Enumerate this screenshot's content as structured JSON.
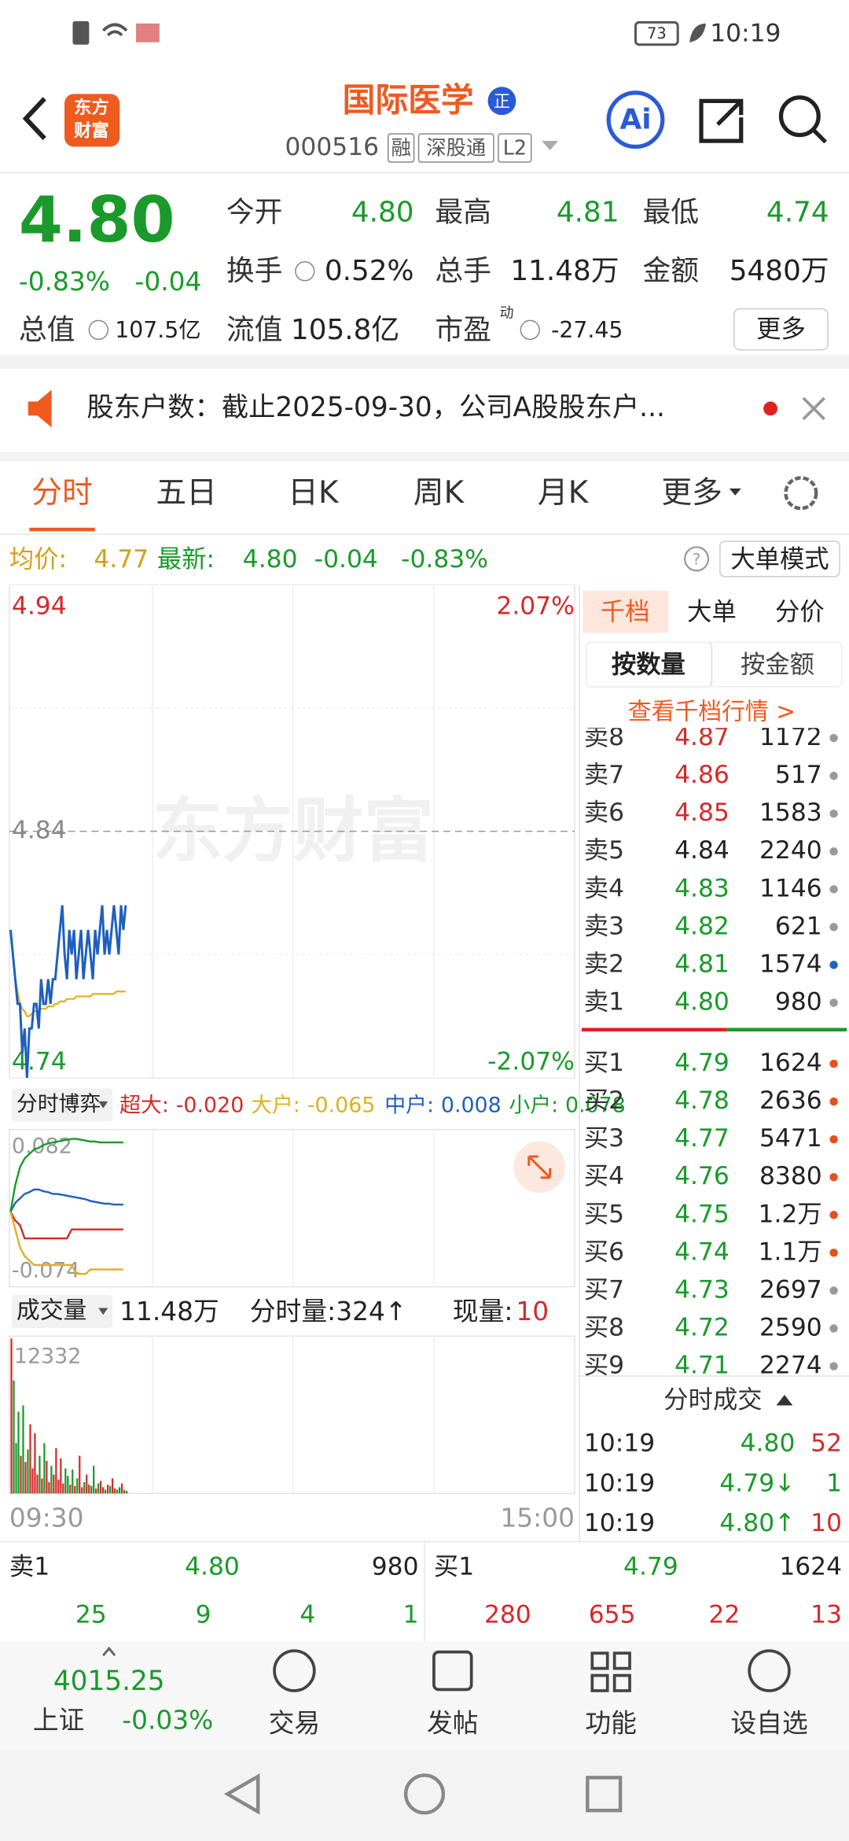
{
  "status": {
    "time": "10:19",
    "battery": "73"
  },
  "header": {
    "logo": [
      "东方",
      "财富"
    ],
    "title": "国际医学",
    "badge": "正",
    "code": "000516",
    "tags": [
      "融",
      "深股通",
      "L2"
    ],
    "ai": "Ai"
  },
  "quote": {
    "price": "4.80",
    "change_pct": "-0.83%",
    "change": "-0.04",
    "fields": [
      [
        "今开",
        "4.80"
      ],
      [
        "最高",
        "4.81"
      ],
      [
        "最低",
        "4.74"
      ],
      [
        "换手",
        "0.52%"
      ],
      [
        "总手",
        "11.48万"
      ],
      [
        "金额",
        "5480万"
      ]
    ],
    "total_value_label": "总值",
    "total_value": "107.5亿",
    "float_value_label": "流值",
    "float_value": "105.8亿",
    "pe_label": "市盈",
    "pe_sup": "动",
    "pe": "-27.45",
    "more": "更多"
  },
  "notice": "股东户数：截止2025-09-30，公司A股股东户...",
  "tabs": [
    "分时",
    "五日",
    "日K",
    "周K",
    "月K",
    "更多"
  ],
  "info_bar": {
    "avg_label": "均价:",
    "avg": "4.77",
    "latest_label": "最新:",
    "latest": "4.80",
    "change": "-0.04",
    "change_pct": "-0.83%",
    "mode": "大单模式"
  },
  "intraday": {
    "watermark": "东方财富",
    "price": {
      "type": "line",
      "ylim": [
        4.74,
        4.94
      ],
      "yticks": [
        4.94,
        4.84,
        4.74
      ],
      "pct_labels": [
        "2.07%",
        "-2.07%"
      ],
      "minutes": 240,
      "values": [
        4.8,
        4.79,
        4.78,
        4.77,
        4.77,
        4.75,
        4.76,
        4.74,
        4.76,
        4.76,
        4.77,
        4.77,
        4.76,
        4.78,
        4.77,
        4.77,
        4.78,
        4.77,
        4.78,
        4.78,
        4.79,
        4.8,
        4.81,
        4.79,
        4.78,
        4.8,
        4.79,
        4.8,
        4.78,
        4.79,
        4.8,
        4.78,
        4.79,
        4.8,
        4.79,
        4.78,
        4.8,
        4.79,
        4.8,
        4.81,
        4.79,
        4.8,
        4.79,
        4.8,
        4.81,
        4.8,
        4.79,
        4.81,
        4.8,
        4.81
      ],
      "avg": [
        4.8,
        4.79,
        4.78,
        4.775,
        4.77,
        4.768,
        4.767,
        4.765,
        4.765,
        4.766,
        4.767,
        4.767,
        4.767,
        4.768,
        4.768,
        4.768,
        4.769,
        4.769,
        4.769,
        4.77,
        4.77,
        4.771,
        4.771,
        4.771,
        4.772,
        4.772,
        4.772,
        4.772,
        4.773,
        4.773,
        4.773,
        4.773,
        4.773,
        4.773,
        4.773,
        4.774,
        4.774,
        4.774,
        4.774,
        4.774,
        4.774,
        4.774,
        4.774,
        4.774,
        4.774,
        4.775,
        4.775,
        4.775,
        4.775,
        4.775
      ],
      "color": "#1f5fbf",
      "avg_color": "#e0b020"
    },
    "flow": {
      "type": "line",
      "title": "分时博弈",
      "ylim": [
        -0.074,
        0.082
      ],
      "yticks": [
        0.082,
        -0.074
      ],
      "step": 2,
      "series": [
        {
          "name": "超大:",
          "label": "-0.020",
          "color": "#d42a2a",
          "values": [
            0,
            -0.01,
            -0.015,
            -0.03,
            -0.03,
            -0.03,
            -0.03,
            -0.03,
            -0.03,
            -0.03,
            -0.03,
            -0.03,
            -0.03,
            -0.02,
            -0.02,
            -0.02,
            -0.02,
            -0.02,
            -0.02,
            -0.02,
            -0.02,
            -0.02,
            -0.02,
            -0.02,
            -0.02
          ]
        },
        {
          "name": "大户:",
          "label": "-0.065",
          "color": "#e0b020",
          "values": [
            0,
            -0.02,
            -0.04,
            -0.05,
            -0.055,
            -0.06,
            -0.06,
            -0.06,
            -0.06,
            -0.06,
            -0.06,
            -0.06,
            -0.06,
            -0.06,
            -0.07,
            -0.07,
            -0.07,
            -0.065,
            -0.065,
            -0.065,
            -0.065,
            -0.065,
            -0.065,
            -0.065,
            -0.065
          ]
        },
        {
          "name": "中户:",
          "label": "0.008",
          "color": "#1f5fbf",
          "values": [
            0,
            0.01,
            0.015,
            0.02,
            0.022,
            0.025,
            0.025,
            0.023,
            0.022,
            0.02,
            0.02,
            0.019,
            0.018,
            0.017,
            0.016,
            0.015,
            0.014,
            0.012,
            0.011,
            0.01,
            0.009,
            0.009,
            0.008,
            0.008,
            0.008
          ]
        },
        {
          "name": "小户:",
          "label": "0.078",
          "color": "#1a9a2a",
          "values": [
            0,
            0.03,
            0.05,
            0.06,
            0.065,
            0.07,
            0.072,
            0.075,
            0.077,
            0.078,
            0.079,
            0.08,
            0.081,
            0.082,
            0.082,
            0.081,
            0.08,
            0.079,
            0.079,
            0.078,
            0.078,
            0.078,
            0.078,
            0.078,
            0.078
          ]
        }
      ]
    },
    "volume": {
      "type": "bar",
      "title": "成交量",
      "total": "11.48万",
      "minute_volume": "分时量:324↑",
      "current_label": "现量:",
      "current": "10",
      "ylim": [
        0,
        12332
      ],
      "yticks": [
        12332
      ],
      "values": [
        12332,
        9000,
        4000,
        6500,
        3000,
        7000,
        2500,
        3500,
        5500,
        2000,
        4800,
        1500,
        3000,
        1200,
        4000,
        2600,
        900,
        2200,
        1500,
        3600,
        1100,
        2800,
        800,
        2000,
        1400,
        700,
        1900,
        600,
        1200,
        3000,
        500,
        900,
        1500,
        700,
        600,
        2200,
        400,
        800,
        1000,
        500,
        300,
        700,
        600,
        1200,
        400,
        300,
        500,
        800,
        300,
        200
      ],
      "up_color": "#d42a2a",
      "down_color": "#1a9a2a"
    },
    "x_labels": [
      "09:30",
      "15:00"
    ]
  },
  "order_book": {
    "tabs": [
      "千档",
      "大单",
      "分价"
    ],
    "modes": [
      "按数量",
      "按金额"
    ],
    "link": "查看千档行情 >",
    "sells": [
      [
        "卖8",
        "4.87",
        "1172",
        "#999"
      ],
      [
        "卖7",
        "4.86",
        "517",
        "#999"
      ],
      [
        "卖6",
        "4.85",
        "1583",
        "#999"
      ],
      [
        "卖5",
        "4.84",
        "2240",
        "#999"
      ],
      [
        "卖4",
        "4.83",
        "1146",
        "#999"
      ],
      [
        "卖3",
        "4.82",
        "621",
        "#999"
      ],
      [
        "卖2",
        "4.81",
        "1574",
        "#1f5fbf"
      ],
      [
        "卖1",
        "4.80",
        "980",
        "#999"
      ]
    ],
    "buys": [
      [
        "买1",
        "4.79",
        "1624",
        "#e8501a"
      ],
      [
        "买2",
        "4.78",
        "2636",
        "#e8501a"
      ],
      [
        "买3",
        "4.77",
        "5471",
        "#e8501a"
      ],
      [
        "买4",
        "4.76",
        "8380",
        "#e8501a"
      ],
      [
        "买5",
        "4.75",
        "1.2万",
        "#e8501a"
      ],
      [
        "买6",
        "4.74",
        "1.1万",
        "#e8501a"
      ],
      [
        "买7",
        "4.73",
        "2697",
        "#999"
      ],
      [
        "买8",
        "4.72",
        "2590",
        "#999"
      ],
      [
        "买9",
        "4.71",
        "2274",
        "#999"
      ]
    ]
  },
  "ticks": {
    "title": "分时成交",
    "rows": [
      [
        "10:19",
        "4.80",
        "52",
        "#d42a2a"
      ],
      [
        "10:19",
        "4.79↓",
        "1",
        "#1a9a2a"
      ],
      [
        "10:19",
        "4.80↑",
        "10",
        "#d42a2a"
      ]
    ]
  },
  "summary": {
    "sell": [
      "卖1",
      "4.80",
      "980"
    ],
    "buy": [
      "买1",
      "4.79",
      "1624"
    ],
    "sell_counts": [
      "25",
      "9",
      "4",
      "1"
    ],
    "buy_counts": [
      "280",
      "655",
      "22",
      "13"
    ]
  },
  "nav": {
    "index_value": "4015.25",
    "index_name": "上证",
    "index_change": "-0.03%",
    "items": [
      "交易",
      "发帖",
      "功能",
      "设自选"
    ]
  }
}
